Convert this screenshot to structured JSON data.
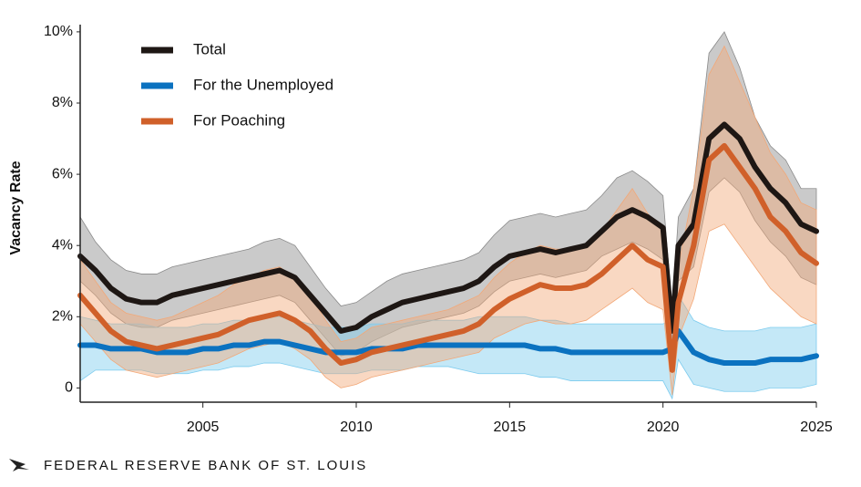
{
  "chart_data": {
    "type": "line",
    "y_label": "Vacancy Rate",
    "source": "FEDERAL RESERVE BANK OF ST. LOUIS",
    "xlim": [
      2001,
      2025
    ],
    "xticks": [
      2005,
      2010,
      2015,
      2020,
      2025
    ],
    "ylim": [
      -0.4,
      10.1
    ],
    "yticks": [
      0,
      {
        "value": 2,
        "label": "2%"
      },
      {
        "value": 4,
        "label": "4%"
      },
      {
        "value": 6,
        "label": "6%"
      },
      {
        "value": 8,
        "label": "8%"
      },
      {
        "value": 10,
        "label": "10%"
      }
    ],
    "x": [
      2001,
      2001.5,
      2002,
      2002.5,
      2003,
      2003.5,
      2004,
      2004.5,
      2005,
      2005.5,
      2006,
      2006.5,
      2007,
      2007.5,
      2008,
      2008.5,
      2009,
      2009.5,
      2010,
      2010.5,
      2011,
      2011.5,
      2012,
      2012.5,
      2013,
      2013.5,
      2014,
      2014.5,
      2015,
      2015.5,
      2016,
      2016.5,
      2017,
      2017.5,
      2018,
      2018.5,
      2019,
      2019.5,
      2020,
      2020.3,
      2020.5,
      2021,
      2021.5,
      2022,
      2022.5,
      2023,
      2023.5,
      2024,
      2024.5,
      2025
    ],
    "series": [
      {
        "name": "Total",
        "color": "#1e1714",
        "band_color": "#8a8a8a",
        "values": [
          3.7,
          3.3,
          2.8,
          2.5,
          2.4,
          2.4,
          2.6,
          2.7,
          2.8,
          2.9,
          3.0,
          3.1,
          3.2,
          3.3,
          3.1,
          2.6,
          2.1,
          1.6,
          1.7,
          2.0,
          2.2,
          2.4,
          2.5,
          2.6,
          2.7,
          2.8,
          3.0,
          3.4,
          3.7,
          3.8,
          3.9,
          3.8,
          3.9,
          4.0,
          4.4,
          4.8,
          5.0,
          4.8,
          4.5,
          1.6,
          4.0,
          4.6,
          7.0,
          7.4,
          7.0,
          6.2,
          5.6,
          5.2,
          4.6,
          4.4
        ],
        "lower": [
          3.0,
          2.6,
          2.1,
          1.8,
          1.7,
          1.7,
          1.9,
          2.0,
          2.1,
          2.2,
          2.3,
          2.4,
          2.5,
          2.6,
          2.4,
          1.9,
          1.4,
          0.9,
          1.0,
          1.3,
          1.5,
          1.7,
          1.8,
          1.9,
          2.0,
          2.1,
          2.3,
          2.7,
          3.0,
          3.1,
          3.2,
          3.1,
          3.2,
          3.3,
          3.7,
          3.9,
          4.1,
          3.9,
          3.6,
          0.6,
          3.0,
          3.4,
          5.5,
          5.9,
          5.5,
          4.7,
          4.1,
          3.7,
          3.1,
          2.9
        ],
        "upper": [
          4.8,
          4.1,
          3.6,
          3.3,
          3.2,
          3.2,
          3.4,
          3.5,
          3.6,
          3.7,
          3.8,
          3.9,
          4.1,
          4.2,
          4.0,
          3.4,
          2.8,
          2.3,
          2.4,
          2.7,
          3.0,
          3.2,
          3.3,
          3.4,
          3.5,
          3.6,
          3.8,
          4.3,
          4.7,
          4.8,
          4.9,
          4.8,
          4.9,
          5.0,
          5.4,
          5.9,
          6.1,
          5.8,
          5.4,
          2.2,
          4.8,
          5.6,
          9.4,
          10.0,
          9.0,
          7.6,
          6.8,
          6.4,
          5.6,
          5.6
        ]
      },
      {
        "name": "For the Unemployed",
        "color": "#0b72c0",
        "band_color": "#7ccbee",
        "values": [
          1.2,
          1.2,
          1.1,
          1.1,
          1.1,
          1.0,
          1.0,
          1.0,
          1.1,
          1.1,
          1.2,
          1.2,
          1.3,
          1.3,
          1.2,
          1.1,
          1.0,
          1.0,
          1.0,
          1.1,
          1.1,
          1.1,
          1.2,
          1.2,
          1.2,
          1.2,
          1.2,
          1.2,
          1.2,
          1.2,
          1.1,
          1.1,
          1.0,
          1.0,
          1.0,
          1.0,
          1.0,
          1.0,
          1.0,
          1.1,
          1.6,
          1.0,
          0.8,
          0.7,
          0.7,
          0.7,
          0.8,
          0.8,
          0.8,
          0.9
        ],
        "lower": [
          0.2,
          0.5,
          0.5,
          0.5,
          0.5,
          0.4,
          0.4,
          0.4,
          0.5,
          0.5,
          0.6,
          0.6,
          0.7,
          0.7,
          0.6,
          0.5,
          0.4,
          0.4,
          0.4,
          0.5,
          0.5,
          0.5,
          0.6,
          0.6,
          0.6,
          0.5,
          0.4,
          0.4,
          0.4,
          0.4,
          0.3,
          0.3,
          0.2,
          0.2,
          0.2,
          0.2,
          0.2,
          0.2,
          0.2,
          -0.3,
          0.8,
          0.1,
          0.0,
          -0.1,
          -0.1,
          -0.1,
          0.0,
          0.0,
          0.0,
          0.1
        ],
        "upper": [
          2.0,
          1.9,
          1.8,
          1.8,
          1.8,
          1.7,
          1.7,
          1.7,
          1.8,
          1.8,
          1.9,
          1.9,
          2.0,
          2.0,
          1.9,
          1.8,
          1.7,
          1.7,
          1.7,
          1.8,
          1.8,
          1.8,
          1.9,
          1.9,
          1.9,
          1.9,
          2.0,
          2.0,
          2.0,
          2.0,
          1.9,
          1.9,
          1.8,
          1.8,
          1.8,
          1.8,
          1.8,
          1.8,
          1.8,
          1.9,
          2.6,
          1.9,
          1.7,
          1.6,
          1.6,
          1.6,
          1.7,
          1.7,
          1.7,
          1.8
        ]
      },
      {
        "name": "For Poaching",
        "color": "#d0602a",
        "band_color": "#f2a878",
        "values": [
          2.6,
          2.1,
          1.6,
          1.3,
          1.2,
          1.1,
          1.2,
          1.3,
          1.4,
          1.5,
          1.7,
          1.9,
          2.0,
          2.1,
          1.9,
          1.6,
          1.1,
          0.7,
          0.8,
          1.0,
          1.1,
          1.2,
          1.3,
          1.4,
          1.5,
          1.6,
          1.8,
          2.2,
          2.5,
          2.7,
          2.9,
          2.8,
          2.8,
          2.9,
          3.2,
          3.6,
          4.0,
          3.6,
          3.4,
          0.5,
          2.4,
          4.0,
          6.4,
          6.8,
          6.2,
          5.6,
          4.8,
          4.4,
          3.8,
          3.5
        ],
        "lower": [
          1.8,
          1.3,
          0.8,
          0.5,
          0.4,
          0.3,
          0.4,
          0.5,
          0.6,
          0.7,
          0.9,
          1.1,
          1.2,
          1.3,
          1.1,
          0.8,
          0.3,
          0.0,
          0.1,
          0.3,
          0.4,
          0.5,
          0.6,
          0.7,
          0.8,
          0.9,
          1.0,
          1.4,
          1.6,
          1.8,
          1.9,
          1.8,
          1.8,
          1.9,
          2.2,
          2.5,
          2.8,
          2.4,
          2.2,
          -0.2,
          1.4,
          2.5,
          4.4,
          4.6,
          4.0,
          3.4,
          2.8,
          2.4,
          2.0,
          1.8
        ],
        "upper": [
          3.6,
          3.0,
          2.4,
          2.1,
          2.0,
          1.9,
          2.0,
          2.2,
          2.4,
          2.6,
          2.9,
          3.1,
          3.3,
          3.4,
          3.1,
          2.6,
          1.9,
          1.3,
          1.4,
          1.7,
          1.8,
          1.9,
          2.0,
          2.1,
          2.2,
          2.4,
          2.6,
          3.1,
          3.5,
          3.8,
          4.0,
          3.9,
          3.9,
          4.0,
          4.4,
          5.0,
          5.6,
          4.9,
          4.4,
          1.1,
          3.4,
          5.6,
          8.8,
          9.6,
          8.6,
          7.6,
          6.6,
          6.0,
          5.2,
          5.0
        ]
      }
    ]
  }
}
